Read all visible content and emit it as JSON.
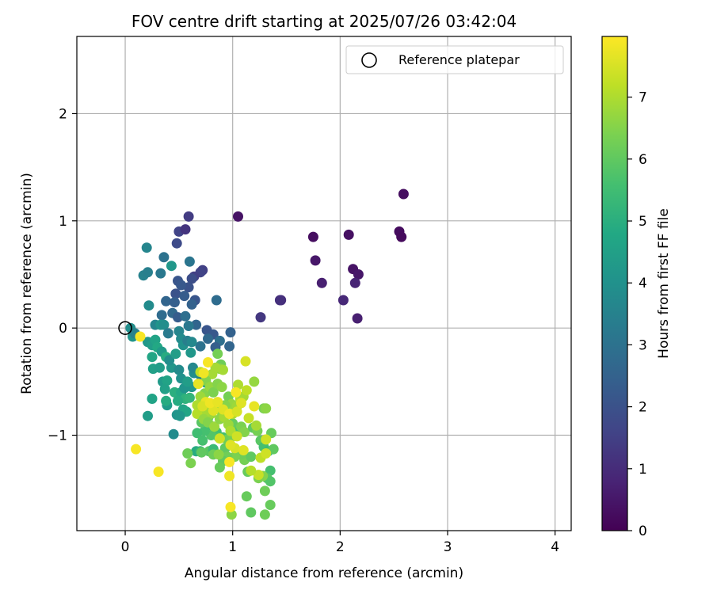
{
  "chart_data": {
    "type": "scatter",
    "title": "FOV centre drift starting at 2025/07/26 03:42:04",
    "xlabel": "Angular distance from reference (arcmin)",
    "ylabel": "Rotation from reference (arcmin)",
    "xlim": [
      -0.45,
      4.15
    ],
    "ylim": [
      -1.89,
      2.72
    ],
    "xticks": [
      0,
      1,
      2,
      3,
      4
    ],
    "xtick_labels": [
      "0",
      "1",
      "2",
      "3",
      "4"
    ],
    "yticks": [
      -1,
      0,
      1,
      2
    ],
    "ytick_labels": [
      "−1",
      "0",
      "1",
      "2"
    ],
    "grid": true,
    "legend": {
      "position": "top-right",
      "entries": [
        "Reference platepar"
      ]
    },
    "reference_point": {
      "x": 0,
      "y": 0,
      "marker": "open-circle",
      "label": "Reference platepar"
    },
    "colorbar": {
      "label": "Hours from first FF file",
      "colormap": "viridis",
      "range": [
        0,
        7.98
      ],
      "ticks": [
        0,
        1,
        2,
        3,
        4,
        5,
        6,
        7
      ],
      "tick_labels": [
        "0",
        "1",
        "2",
        "3",
        "4",
        "5",
        "6",
        "7"
      ]
    },
    "series": [
      {
        "values_are": "[x, y, hours]",
        "points": [
          [
            1.05,
            1.04,
            0.4
          ],
          [
            0.59,
            1.04,
            1.4
          ],
          [
            1.75,
            0.85,
            0.3
          ],
          [
            2.08,
            0.87,
            0.35
          ],
          [
            2.55,
            0.9,
            0.25
          ],
          [
            2.57,
            0.85,
            0.2
          ],
          [
            2.59,
            1.25,
            0.3
          ],
          [
            1.77,
            0.63,
            0.5
          ],
          [
            1.83,
            0.42,
            0.7
          ],
          [
            2.12,
            0.55,
            0.4
          ],
          [
            2.17,
            0.5,
            0.5
          ],
          [
            2.14,
            0.42,
            0.8
          ],
          [
            2.03,
            0.26,
            0.9
          ],
          [
            2.16,
            0.09,
            0.7
          ],
          [
            1.45,
            0.26,
            1.0
          ],
          [
            1.44,
            0.26,
            1.1
          ],
          [
            1.26,
            0.1,
            1.3
          ],
          [
            0.5,
            0.9,
            1.6
          ],
          [
            0.56,
            0.92,
            1.2
          ],
          [
            0.48,
            0.79,
            1.8
          ],
          [
            0.72,
            0.54,
            1.5
          ],
          [
            0.7,
            0.52,
            1.6
          ],
          [
            0.64,
            0.48,
            1.5
          ],
          [
            0.62,
            0.46,
            1.9
          ],
          [
            0.59,
            0.38,
            2.0
          ],
          [
            0.49,
            0.44,
            2.1
          ],
          [
            0.52,
            0.4,
            2.2
          ],
          [
            0.47,
            0.32,
            2.0
          ],
          [
            0.55,
            0.3,
            2.3
          ],
          [
            0.65,
            0.26,
            2.1
          ],
          [
            0.62,
            0.22,
            2.5
          ],
          [
            0.38,
            0.25,
            2.6
          ],
          [
            0.46,
            0.24,
            2.4
          ],
          [
            0.44,
            0.14,
            2.7
          ],
          [
            0.34,
            0.12,
            2.8
          ],
          [
            0.49,
            0.1,
            2.3
          ],
          [
            0.56,
            0.11,
            2.9
          ],
          [
            0.66,
            0.03,
            2.6
          ],
          [
            0.76,
            -0.02,
            2.1
          ],
          [
            0.82,
            -0.06,
            2.2
          ],
          [
            0.85,
            0.26,
            2.8
          ],
          [
            0.98,
            -0.04,
            2.5
          ],
          [
            0.97,
            -0.17,
            2.6
          ],
          [
            0.88,
            -0.12,
            2.9
          ],
          [
            0.84,
            -0.18,
            2.4
          ],
          [
            0.77,
            -0.1,
            2.7
          ],
          [
            0.7,
            -0.17,
            3.0
          ],
          [
            0.36,
            0.66,
            3.0
          ],
          [
            0.43,
            0.58,
            4.2
          ],
          [
            0.33,
            0.51,
            3.2
          ],
          [
            0.17,
            0.49,
            3.5
          ],
          [
            0.21,
            0.52,
            3.4
          ],
          [
            0.2,
            0.75,
            3.6
          ],
          [
            0.6,
            0.62,
            3.1
          ],
          [
            0.22,
            0.21,
            3.8
          ],
          [
            0.28,
            0.03,
            3.6
          ],
          [
            0.33,
            0.03,
            4.1
          ],
          [
            0.36,
            0.03,
            3.9
          ],
          [
            0.4,
            -0.05,
            3.3
          ],
          [
            0.5,
            -0.03,
            3.6
          ],
          [
            0.52,
            -0.1,
            3.8
          ],
          [
            0.54,
            -0.16,
            4.0
          ],
          [
            0.58,
            -0.12,
            3.4
          ],
          [
            0.62,
            -0.13,
            3.7
          ],
          [
            0.59,
            0.02,
            3.2
          ],
          [
            0.05,
            0.0,
            3.9
          ],
          [
            0.07,
            -0.08,
            4.1
          ],
          [
            0.09,
            -0.05,
            3.5
          ],
          [
            0.21,
            -0.13,
            4.2
          ],
          [
            0.25,
            -0.16,
            4.4
          ],
          [
            0.28,
            -0.11,
            4.6
          ],
          [
            0.3,
            -0.18,
            4.8
          ],
          [
            0.34,
            -0.22,
            4.3
          ],
          [
            0.38,
            -0.27,
            4.9
          ],
          [
            0.25,
            -0.27,
            4.7
          ],
          [
            0.26,
            -0.38,
            4.5
          ],
          [
            0.32,
            -0.37,
            4.4
          ],
          [
            0.35,
            -0.5,
            4.3
          ],
          [
            0.39,
            -0.49,
            4.6
          ],
          [
            0.43,
            -0.37,
            4.2
          ],
          [
            0.41,
            -0.3,
            3.9
          ],
          [
            0.47,
            -0.24,
            4.4
          ],
          [
            0.5,
            -0.39,
            3.8
          ],
          [
            0.52,
            -0.47,
            4.0
          ],
          [
            0.37,
            -0.57,
            4.5
          ],
          [
            0.46,
            -0.6,
            5.0
          ],
          [
            0.52,
            -0.6,
            4.8
          ],
          [
            0.56,
            -0.66,
            5.1
          ],
          [
            0.49,
            -0.68,
            4.9
          ],
          [
            0.54,
            -0.76,
            4.6
          ],
          [
            0.48,
            -0.81,
            4.1
          ],
          [
            0.45,
            -0.99,
            3.8
          ],
          [
            0.25,
            -0.66,
            4.6
          ],
          [
            0.21,
            -0.82,
            4.4
          ],
          [
            0.39,
            -0.72,
            4.3
          ],
          [
            0.38,
            -0.68,
            4.9
          ],
          [
            0.6,
            -0.65,
            5.2
          ],
          [
            0.62,
            -0.55,
            4.2
          ],
          [
            0.55,
            -0.56,
            4.1
          ],
          [
            0.58,
            -0.5,
            4.4
          ],
          [
            0.64,
            -0.42,
            3.9
          ],
          [
            0.63,
            -0.37,
            3.7
          ],
          [
            0.7,
            -0.44,
            3.6
          ],
          [
            0.72,
            -0.49,
            3.3
          ],
          [
            0.75,
            -0.51,
            4.6
          ],
          [
            0.61,
            -0.23,
            4.2
          ],
          [
            0.57,
            -0.78,
            4.7
          ],
          [
            0.51,
            -0.82,
            4.2
          ],
          [
            0.79,
            -0.74,
            5.2
          ],
          [
            0.77,
            -0.84,
            5.4
          ],
          [
            0.82,
            -0.92,
            5.3
          ],
          [
            0.85,
            -0.97,
            5.5
          ],
          [
            0.87,
            -1.02,
            5.7
          ],
          [
            0.91,
            -1.02,
            5.6
          ],
          [
            0.8,
            -1.0,
            5.8
          ],
          [
            0.74,
            -0.96,
            5.6
          ],
          [
            0.71,
            -0.88,
            5.9
          ],
          [
            0.67,
            -0.98,
            5.5
          ],
          [
            0.66,
            -1.15,
            4.9
          ],
          [
            0.7,
            -1.15,
            5.2
          ],
          [
            0.72,
            -1.05,
            5.6
          ],
          [
            0.78,
            -1.15,
            5.9
          ],
          [
            0.82,
            -1.13,
            5.4
          ],
          [
            0.82,
            -1.18,
            6.2
          ],
          [
            0.93,
            -1.12,
            6.0
          ],
          [
            0.95,
            -1.04,
            6.2
          ],
          [
            1.0,
            -1.01,
            6.3
          ],
          [
            1.04,
            -0.97,
            5.7
          ],
          [
            1.0,
            -0.89,
            6.1
          ],
          [
            1.08,
            -0.92,
            6.4
          ],
          [
            1.11,
            -0.97,
            6.5
          ],
          [
            1.19,
            -0.93,
            6.0
          ],
          [
            1.23,
            -0.96,
            6.3
          ],
          [
            1.26,
            -1.05,
            5.9
          ],
          [
            1.29,
            -1.11,
            5.6
          ],
          [
            1.33,
            -1.15,
            5.4
          ],
          [
            1.36,
            -0.98,
            6.1
          ],
          [
            1.38,
            -1.13,
            6.0
          ],
          [
            1.35,
            -1.33,
            5.6
          ],
          [
            1.32,
            -1.4,
            5.9
          ],
          [
            1.35,
            -1.43,
            5.8
          ],
          [
            1.3,
            -1.52,
            6.2
          ],
          [
            1.28,
            -1.38,
            6.5
          ],
          [
            1.24,
            -1.4,
            6.4
          ],
          [
            1.14,
            -1.34,
            6.1
          ],
          [
            1.11,
            -1.23,
            6.3
          ],
          [
            1.08,
            -1.18,
            6.2
          ],
          [
            1.02,
            -1.2,
            6.4
          ],
          [
            0.95,
            -1.2,
            6.2
          ],
          [
            0.91,
            -1.24,
            6.0
          ],
          [
            0.87,
            -1.18,
            6.6
          ],
          [
            0.88,
            -1.3,
            6.1
          ],
          [
            1.17,
            -1.2,
            6.0
          ],
          [
            1.13,
            -1.57,
            6.1
          ],
          [
            1.17,
            -1.72,
            6.0
          ],
          [
            1.3,
            -1.74,
            6.2
          ],
          [
            1.35,
            -1.65,
            6.1
          ],
          [
            0.99,
            -1.74,
            6.6
          ],
          [
            0.58,
            -1.17,
            6.2
          ],
          [
            0.61,
            -1.26,
            6.4
          ],
          [
            0.71,
            -1.16,
            6.0
          ],
          [
            0.74,
            -0.61,
            6.5
          ],
          [
            0.7,
            -0.64,
            6.8
          ],
          [
            0.67,
            -0.72,
            7.0
          ],
          [
            0.86,
            -0.24,
            6.3
          ],
          [
            0.89,
            -0.34,
            6.2
          ],
          [
            0.88,
            -0.38,
            6.6
          ],
          [
            0.81,
            -0.43,
            6.9
          ],
          [
            0.75,
            -0.49,
            6.5
          ],
          [
            0.79,
            -0.55,
            6.7
          ],
          [
            0.82,
            -0.6,
            6.4
          ],
          [
            0.86,
            -0.52,
            6.5
          ],
          [
            0.9,
            -0.55,
            6.6
          ],
          [
            0.96,
            -0.64,
            6.3
          ],
          [
            0.99,
            -0.71,
            6.7
          ],
          [
            0.93,
            -0.72,
            6.5
          ],
          [
            0.86,
            -0.76,
            6.6
          ],
          [
            0.8,
            -0.8,
            6.8
          ],
          [
            0.75,
            -0.78,
            6.9
          ],
          [
            0.71,
            -0.74,
            6.9
          ],
          [
            0.67,
            -0.8,
            7.1
          ],
          [
            0.73,
            -0.85,
            6.7
          ],
          [
            0.77,
            -0.88,
            6.5
          ],
          [
            0.83,
            -0.92,
            6.8
          ],
          [
            0.88,
            -0.85,
            6.6
          ],
          [
            0.92,
            -0.83,
            6.9
          ],
          [
            0.96,
            -0.9,
            6.8
          ],
          [
            0.98,
            -0.96,
            7.0
          ],
          [
            1.0,
            -0.8,
            7.0
          ],
          [
            1.04,
            -0.73,
            6.8
          ],
          [
            1.07,
            -0.66,
            7.1
          ],
          [
            1.1,
            -0.64,
            6.9
          ],
          [
            1.13,
            -0.58,
            7.2
          ],
          [
            1.2,
            -0.5,
            6.7
          ],
          [
            1.29,
            -0.75,
            6.4
          ],
          [
            1.31,
            -0.75,
            6.6
          ],
          [
            1.05,
            -0.53,
            7.0
          ],
          [
            0.91,
            -0.39,
            6.9
          ],
          [
            0.84,
            -0.37,
            6.9
          ],
          [
            0.7,
            -0.41,
            7.2
          ],
          [
            1.22,
            -0.91,
            6.9
          ],
          [
            1.26,
            -1.21,
            7.2
          ],
          [
            1.31,
            -1.04,
            7.4
          ],
          [
            1.31,
            -1.17,
            7.4
          ],
          [
            1.24,
            -1.37,
            7.3
          ],
          [
            1.17,
            -1.33,
            7.1
          ],
          [
            1.04,
            -1.01,
            7.4
          ],
          [
            1.02,
            -1.12,
            7.5
          ],
          [
            0.98,
            -1.09,
            7.6
          ],
          [
            0.88,
            -1.03,
            7.4
          ],
          [
            0.82,
            -0.77,
            7.6
          ],
          [
            0.75,
            -0.69,
            7.7
          ],
          [
            0.72,
            -0.73,
            7.5
          ],
          [
            0.79,
            -0.7,
            7.8
          ],
          [
            0.86,
            -0.69,
            7.7
          ],
          [
            0.91,
            -0.76,
            7.6
          ],
          [
            0.97,
            -0.8,
            7.8
          ],
          [
            1.04,
            -0.78,
            7.5
          ],
          [
            1.08,
            -0.7,
            7.6
          ],
          [
            1.15,
            -0.84,
            7.3
          ],
          [
            1.12,
            -0.31,
            7.5
          ],
          [
            0.77,
            -0.32,
            7.9
          ],
          [
            0.73,
            -0.42,
            7.8
          ],
          [
            0.68,
            -0.52,
            7.7
          ],
          [
            0.97,
            -1.25,
            7.9
          ],
          [
            0.97,
            -1.38,
            7.8
          ],
          [
            0.98,
            -1.67,
            7.9
          ],
          [
            1.1,
            -1.14,
            7.6
          ],
          [
            1.2,
            -0.73,
            7.7
          ],
          [
            1.03,
            -0.6,
            7.9
          ],
          [
            0.14,
            -0.08,
            7.9
          ],
          [
            0.1,
            -1.13,
            7.9
          ],
          [
            0.31,
            -1.34,
            7.9
          ]
        ]
      }
    ]
  }
}
